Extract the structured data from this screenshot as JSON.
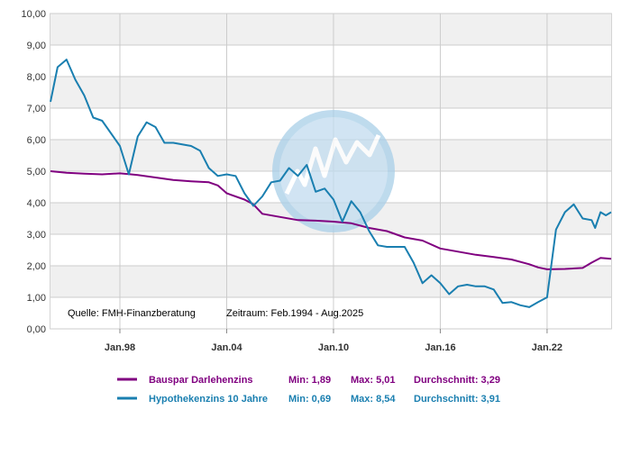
{
  "chart_data": {
    "type": "line",
    "title": "",
    "xlabel": "",
    "ylabel": "",
    "xlim": [
      1994.1,
      2025.6
    ],
    "ylim": [
      0,
      10
    ],
    "y_ticks": [
      {
        "value": 0,
        "label": "0,00"
      },
      {
        "value": 1,
        "label": "1,00"
      },
      {
        "value": 2,
        "label": "2,00"
      },
      {
        "value": 3,
        "label": "3,00"
      },
      {
        "value": 4,
        "label": "4,00"
      },
      {
        "value": 5,
        "label": "5,00"
      },
      {
        "value": 6,
        "label": "6,00"
      },
      {
        "value": 7,
        "label": "7,00"
      },
      {
        "value": 8,
        "label": "8,00"
      },
      {
        "value": 9,
        "label": "9,00"
      },
      {
        "value": 10,
        "label": "10,00"
      }
    ],
    "x_ticks": [
      {
        "value": 1998.0,
        "label": "Jan.98"
      },
      {
        "value": 2004.0,
        "label": "Jan.04"
      },
      {
        "value": 2010.0,
        "label": "Jan.10"
      },
      {
        "value": 2016.0,
        "label": "Jan.16"
      },
      {
        "value": 2022.0,
        "label": "Jan.22"
      }
    ],
    "grid": true,
    "annotations": {
      "source": "Quelle: FMH-Finanzberatung",
      "period": "Zeitraum: Feb.1994 - Aug.2025"
    },
    "series": [
      {
        "name": "Bauspar Darlehenzins",
        "color": "#800080",
        "stats": {
          "min": "Min: 1,89",
          "max": "Max: 5,01",
          "avg": "Durchschnitt: 3,29"
        },
        "x": [
          1994.1,
          1995.0,
          1996.0,
          1997.0,
          1998.0,
          1998.5,
          1999.0,
          2000.0,
          2001.0,
          2002.0,
          2003.0,
          2003.5,
          2004.0,
          2005.0,
          2005.5,
          2006.0,
          2007.0,
          2008.0,
          2009.0,
          2010.0,
          2011.0,
          2012.0,
          2013.0,
          2014.0,
          2015.0,
          2016.0,
          2017.0,
          2018.0,
          2019.0,
          2020.0,
          2021.0,
          2021.5,
          2022.0,
          2023.0,
          2024.0,
          2024.5,
          2025.0,
          2025.6
        ],
        "y": [
          5.0,
          4.95,
          4.92,
          4.9,
          4.93,
          4.91,
          4.88,
          4.8,
          4.72,
          4.68,
          4.65,
          4.55,
          4.3,
          4.1,
          3.95,
          3.65,
          3.55,
          3.45,
          3.43,
          3.4,
          3.35,
          3.2,
          3.1,
          2.9,
          2.8,
          2.55,
          2.45,
          2.35,
          2.28,
          2.2,
          2.05,
          1.95,
          1.89,
          1.9,
          1.93,
          2.1,
          2.25,
          2.22
        ]
      },
      {
        "name": "Hypothekenzins 10 Jahre",
        "color": "#1a7fb0",
        "stats": {
          "min": "Min: 0,69",
          "max": "Max: 8,54",
          "avg": "Durchschnitt: 3,91"
        },
        "x": [
          1994.1,
          1994.5,
          1995.0,
          1995.5,
          1996.0,
          1996.5,
          1997.0,
          1998.0,
          1998.5,
          1999.0,
          1999.5,
          2000.0,
          2000.5,
          2001.0,
          2002.0,
          2002.5,
          2003.0,
          2003.5,
          2004.0,
          2004.5,
          2005.0,
          2005.5,
          2006.0,
          2006.5,
          2007.0,
          2007.5,
          2008.0,
          2008.5,
          2009.0,
          2009.5,
          2010.0,
          2010.5,
          2011.0,
          2011.5,
          2012.0,
          2012.5,
          2013.0,
          2014.0,
          2014.5,
          2015.0,
          2015.5,
          2016.0,
          2016.5,
          2017.0,
          2017.5,
          2018.0,
          2018.5,
          2019.0,
          2019.5,
          2020.0,
          2020.5,
          2021.0,
          2021.5,
          2022.0,
          2022.5,
          2023.0,
          2023.5,
          2024.0,
          2024.5,
          2024.7,
          2025.0,
          2025.3,
          2025.6
        ],
        "y": [
          7.2,
          8.3,
          8.54,
          7.9,
          7.4,
          6.7,
          6.6,
          5.8,
          4.9,
          6.1,
          6.55,
          6.4,
          5.9,
          5.9,
          5.8,
          5.65,
          5.1,
          4.85,
          4.9,
          4.85,
          4.3,
          3.9,
          4.2,
          4.65,
          4.7,
          5.1,
          4.85,
          5.2,
          4.35,
          4.45,
          4.1,
          3.4,
          4.05,
          3.7,
          3.1,
          2.65,
          2.6,
          2.6,
          2.1,
          1.45,
          1.7,
          1.45,
          1.1,
          1.35,
          1.4,
          1.35,
          1.35,
          1.25,
          0.82,
          0.85,
          0.75,
          0.69,
          0.85,
          1.0,
          3.15,
          3.7,
          3.95,
          3.5,
          3.45,
          3.2,
          3.7,
          3.6,
          3.7
        ]
      }
    ]
  }
}
